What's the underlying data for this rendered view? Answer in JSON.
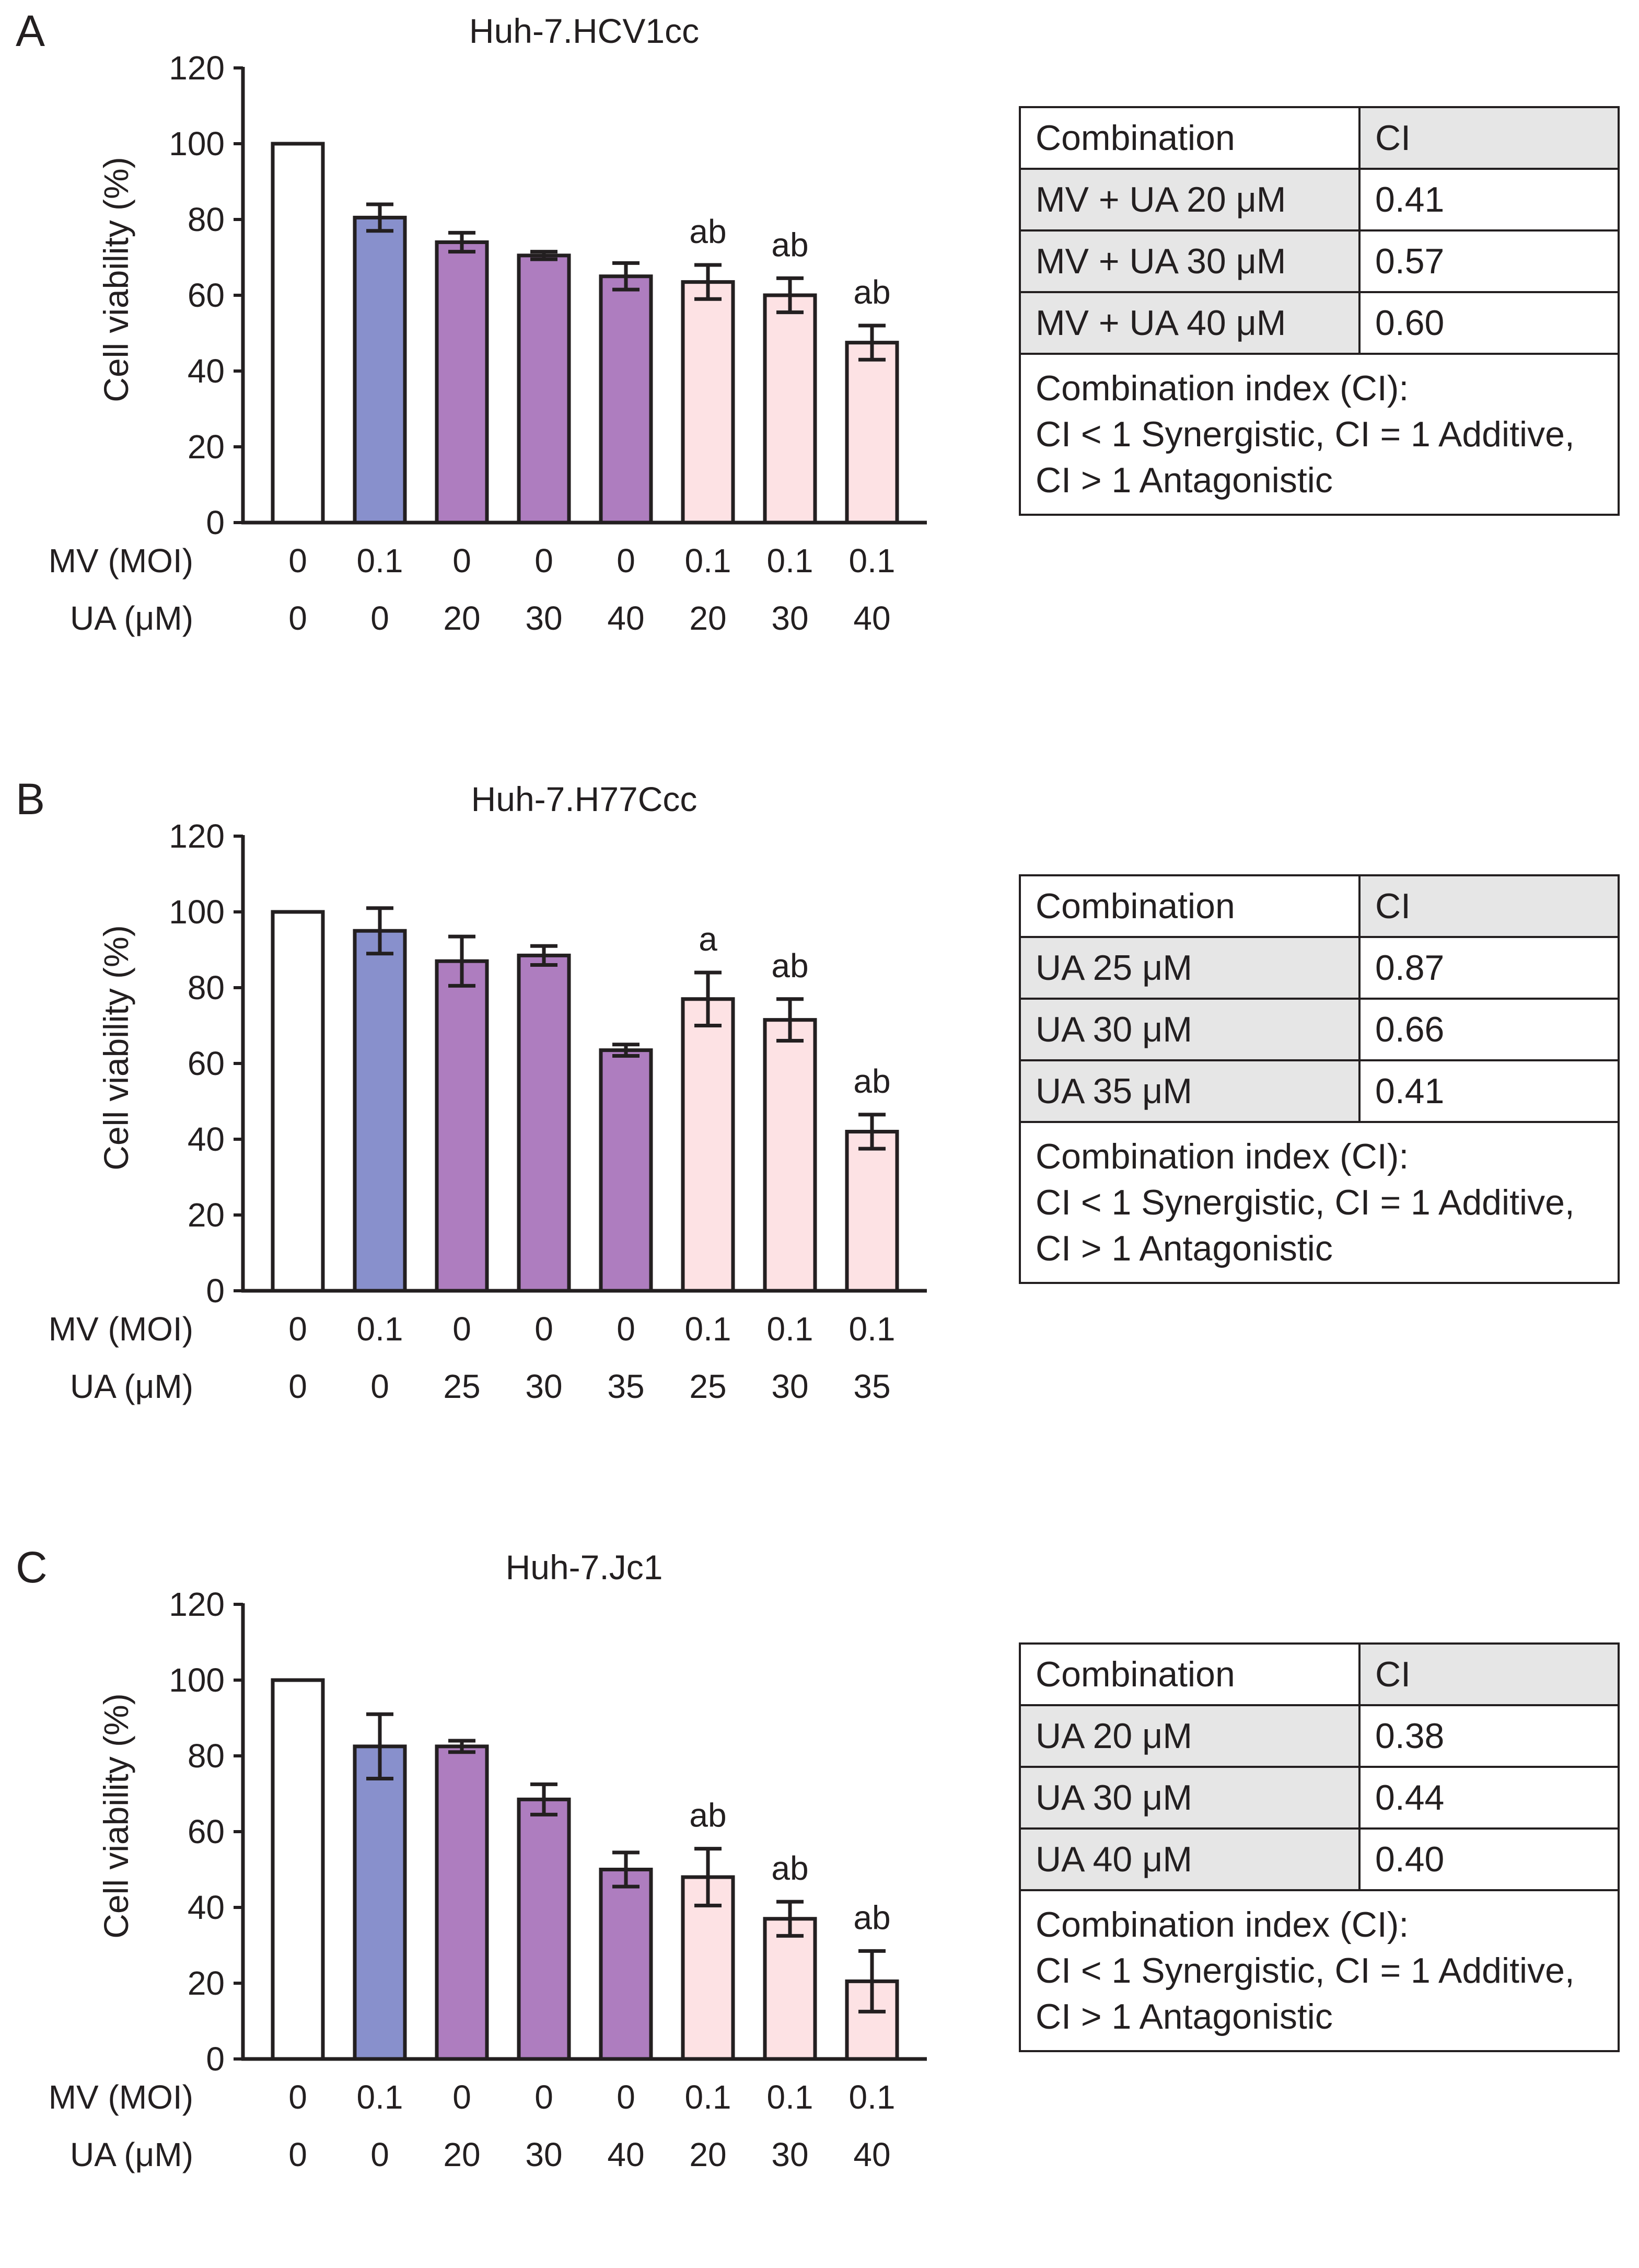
{
  "colors": {
    "control": "#ffffff",
    "mv_only": "#8890cc",
    "ua_only": "#ae7dbf",
    "combination": "#fde2e4",
    "stroke": "#231f20",
    "table_header_gray": "#e6e6e6"
  },
  "chart_data": [
    {
      "panel_letter": "A",
      "type": "bar",
      "title": "Huh-7.HCV1cc",
      "ylabel": "Cell viability (%)",
      "ylim": [
        0,
        120
      ],
      "yticks": [
        "0",
        "20",
        "40",
        "60",
        "80",
        "100",
        "120"
      ],
      "row_labels": [
        "MV (MOI)",
        "UA (μM)"
      ],
      "mv": [
        "0",
        "0.1",
        "0",
        "0",
        "0",
        "0.1",
        "0.1",
        "0.1"
      ],
      "ua": [
        "0",
        "0",
        "20",
        "30",
        "40",
        "20",
        "30",
        "40"
      ],
      "values": [
        100,
        80.5,
        74,
        70.5,
        65,
        63.5,
        60,
        47.5
      ],
      "errors": [
        0,
        3.5,
        2.5,
        1,
        3.5,
        4.5,
        4.5,
        4.5
      ],
      "groups": [
        "control",
        "mv_only",
        "ua_only",
        "ua_only",
        "ua_only",
        "combination",
        "combination",
        "combination"
      ],
      "annotations": [
        "",
        "",
        "",
        "",
        "",
        "ab",
        "ab",
        "ab"
      ],
      "ci_table": {
        "header": [
          "Combination",
          "CI"
        ],
        "rows": [
          [
            "MV + UA 20 μM",
            "0.41"
          ],
          [
            "MV + UA 30 μM",
            "0.57"
          ],
          [
            "MV + UA 40 μM",
            "0.60"
          ]
        ],
        "note": [
          "Combination index (CI):",
          "CI < 1 Synergistic, CI = 1 Additive,",
          "CI > 1 Antagonistic"
        ]
      }
    },
    {
      "panel_letter": "B",
      "type": "bar",
      "title": "Huh-7.H77Ccc",
      "ylabel": "Cell viability (%)",
      "ylim": [
        0,
        120
      ],
      "yticks": [
        "0",
        "20",
        "40",
        "60",
        "80",
        "100",
        "120"
      ],
      "row_labels": [
        "MV (MOI)",
        "UA (μM)"
      ],
      "mv": [
        "0",
        "0.1",
        "0",
        "0",
        "0",
        "0.1",
        "0.1",
        "0.1"
      ],
      "ua": [
        "0",
        "0",
        "25",
        "30",
        "35",
        "25",
        "30",
        "35"
      ],
      "values": [
        100,
        95,
        87,
        88.5,
        63.5,
        77,
        71.5,
        42
      ],
      "errors": [
        0,
        6,
        6.5,
        2.5,
        1.5,
        7,
        5.5,
        4.5
      ],
      "groups": [
        "control",
        "mv_only",
        "ua_only",
        "ua_only",
        "ua_only",
        "combination",
        "combination",
        "combination"
      ],
      "annotations": [
        "",
        "",
        "",
        "",
        "",
        "a",
        "ab",
        "ab"
      ],
      "ci_table": {
        "header": [
          "Combination",
          "CI"
        ],
        "rows": [
          [
            "UA 25 μM",
            "0.87"
          ],
          [
            "UA 30 μM",
            "0.66"
          ],
          [
            "UA 35 μM",
            "0.41"
          ]
        ],
        "note": [
          "Combination index (CI):",
          "CI < 1 Synergistic, CI = 1 Additive,",
          "CI > 1 Antagonistic"
        ]
      }
    },
    {
      "panel_letter": "C",
      "type": "bar",
      "title": "Huh-7.Jc1",
      "ylabel": "Cell viability (%)",
      "ylim": [
        0,
        120
      ],
      "yticks": [
        "0",
        "20",
        "40",
        "60",
        "80",
        "100",
        "120"
      ],
      "row_labels": [
        "MV (MOI)",
        "UA (μM)"
      ],
      "mv": [
        "0",
        "0.1",
        "0",
        "0",
        "0",
        "0.1",
        "0.1",
        "0.1"
      ],
      "ua": [
        "0",
        "0",
        "20",
        "30",
        "40",
        "20",
        "30",
        "40"
      ],
      "values": [
        100,
        82.5,
        82.5,
        68.5,
        50,
        48,
        37,
        20.5
      ],
      "errors": [
        0,
        8.5,
        1.5,
        4,
        4.5,
        7.5,
        4.5,
        8
      ],
      "groups": [
        "control",
        "mv_only",
        "ua_only",
        "ua_only",
        "ua_only",
        "combination",
        "combination",
        "combination"
      ],
      "annotations": [
        "",
        "",
        "",
        "",
        "",
        "ab",
        "ab",
        "ab"
      ],
      "ci_table": {
        "header": [
          "Combination",
          "CI"
        ],
        "rows": [
          [
            "UA 20 μM",
            "0.38"
          ],
          [
            "UA 30 μM",
            "0.44"
          ],
          [
            "UA 40 μM",
            "0.40"
          ]
        ],
        "note": [
          "Combination index (CI):",
          "CI < 1 Synergistic, CI = 1 Additive,",
          "CI > 1 Antagonistic"
        ]
      }
    }
  ]
}
